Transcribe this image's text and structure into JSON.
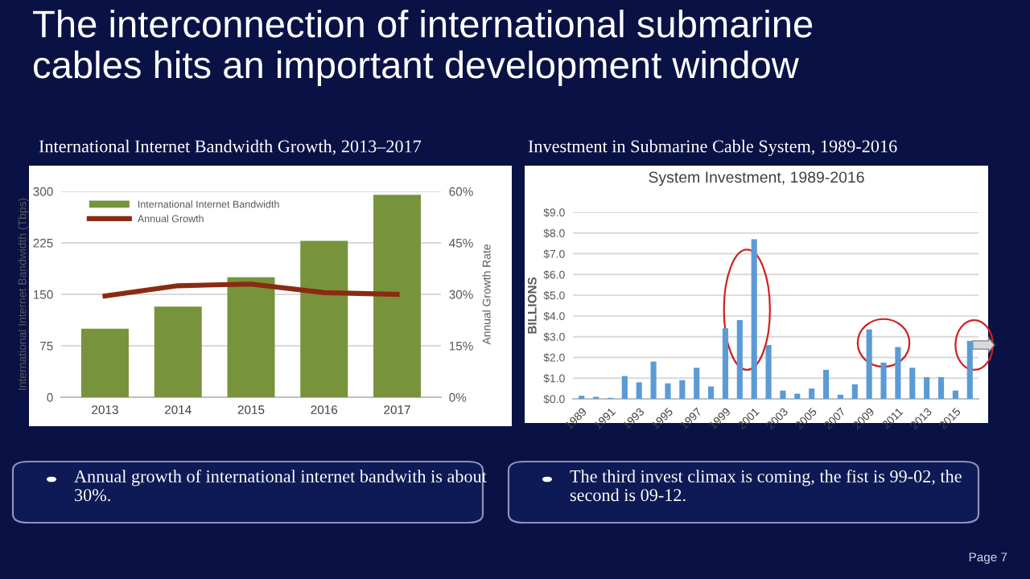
{
  "chart_data": [
    {
      "type": "bar",
      "title": "International Internet Bandwidth Growth, 2013–2017",
      "ylabel": "International Internet Bandwidth (Tbps)",
      "y2label": "Annual Growth Rate",
      "categories": [
        "2013",
        "2014",
        "2015",
        "2016",
        "2017"
      ],
      "series": [
        {
          "name": "International Internet Bandwidth",
          "type": "bar",
          "color": "#77933c",
          "values": [
            100,
            132,
            175,
            228,
            295
          ]
        },
        {
          "name": "Annual Growth",
          "type": "line",
          "axis": "y2",
          "color": "#8b2a12",
          "values": [
            29.5,
            32.5,
            33,
            30.5,
            30
          ]
        }
      ],
      "ylim": [
        0,
        300
      ],
      "yticks": [
        0,
        75,
        150,
        225,
        300
      ],
      "y2lim": [
        0,
        60
      ],
      "y2ticks": [
        {
          "value": 0,
          "label": "0%"
        },
        {
          "value": 15,
          "label": "15%"
        },
        {
          "value": 30,
          "label": "30%"
        },
        {
          "value": 45,
          "label": "45%"
        },
        {
          "value": 60,
          "label": "60%"
        }
      ],
      "grid": "y",
      "legend": "top left",
      "annotations": [
        "The interconnection of international submarine cables hits an important development window",
        "Annual growth of international internet bandwith is about 30%."
      ]
    },
    {
      "type": "bar",
      "title": "Investment in Submarine Cable System, 1989-2016",
      "subtitle": "System Investment, 1989-2016",
      "ylabel": "BILLIONS",
      "categories": [
        "1989",
        null,
        "1991",
        null,
        "1993",
        null,
        "1995",
        null,
        "1997",
        null,
        "1999",
        null,
        "2001",
        null,
        "2003",
        null,
        "2005",
        null,
        "2007",
        null,
        "2009",
        null,
        "2011",
        null,
        "2013",
        null,
        "2015",
        null
      ],
      "values": [
        0.15,
        0.1,
        0.05,
        1.1,
        0.8,
        1.8,
        0.75,
        0.9,
        1.5,
        0.6,
        3.4,
        3.8,
        7.7,
        2.6,
        0.4,
        0.25,
        0.5,
        1.4,
        0.2,
        0.7,
        3.35,
        1.75,
        2.5,
        1.5,
        1.05,
        1.05,
        0.4,
        2.8
      ],
      "color": "#5b9bd5",
      "ylim": [
        0,
        9
      ],
      "yticks": [
        {
          "value": 0,
          "label": "$0.0"
        },
        {
          "value": 1,
          "label": "$1.0"
        },
        {
          "value": 2,
          "label": "$2.0"
        },
        {
          "value": 3,
          "label": "$3.0"
        },
        {
          "value": 4,
          "label": "$4.0"
        },
        {
          "value": 5,
          "label": "$5.0"
        },
        {
          "value": 6,
          "label": "$6.0"
        },
        {
          "value": 7,
          "label": "$7.0"
        },
        {
          "value": 8,
          "label": "$8.0"
        },
        {
          "value": 9,
          "label": "$9.0"
        }
      ],
      "grid": "y",
      "annotations": [
        "The third invest climax is coming, the fist is 99-02, the second is 09-12.",
        "Page 7"
      ]
    }
  ]
}
